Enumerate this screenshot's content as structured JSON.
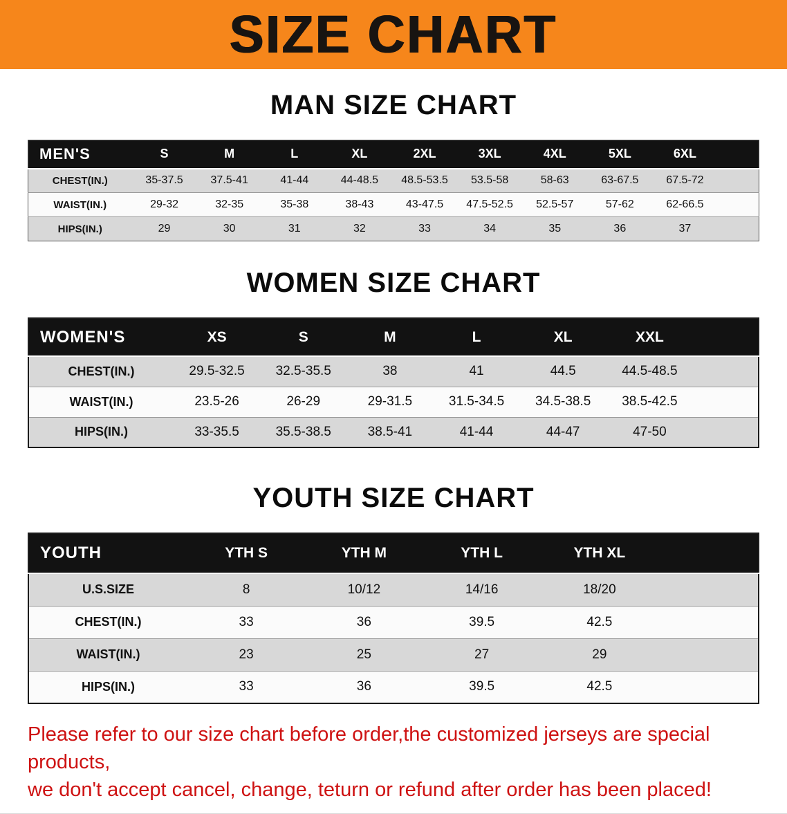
{
  "banner": {
    "title": "SIZE CHART",
    "bg_color": "#F6861B",
    "text_color": "#181411"
  },
  "sections": [
    {
      "heading": "MAN SIZE CHART",
      "table": {
        "header": [
          "MEN'S",
          "S",
          "M",
          "L",
          "XL",
          "2XL",
          "3XL",
          "4XL",
          "5XL",
          "6XL"
        ],
        "rows": [
          [
            "CHEST(IN.)",
            "35-37.5",
            "37.5-41",
            "41-44",
            "44-48.5",
            "48.5-53.5",
            "53.5-58",
            "58-63",
            "63-67.5",
            "67.5-72"
          ],
          [
            "WAIST(IN.)",
            "29-32",
            "32-35",
            "35-38",
            "38-43",
            "43-47.5",
            "47.5-52.5",
            "52.5-57",
            "57-62",
            "62-66.5"
          ],
          [
            "HIPS(IN.)",
            "29",
            "30",
            "31",
            "32",
            "33",
            "34",
            "35",
            "36",
            "37"
          ]
        ]
      }
    },
    {
      "heading": "WOMEN SIZE CHART",
      "table": {
        "header": [
          "WOMEN'S",
          "XS",
          "S",
          "M",
          "L",
          "XL",
          "XXL"
        ],
        "rows": [
          [
            "CHEST(IN.)",
            "29.5-32.5",
            "32.5-35.5",
            "38",
            "41",
            "44.5",
            "44.5-48.5"
          ],
          [
            "WAIST(IN.)",
            "23.5-26",
            "26-29",
            "29-31.5",
            "31.5-34.5",
            "34.5-38.5",
            "38.5-42.5"
          ],
          [
            "HIPS(IN.)",
            "33-35.5",
            "35.5-38.5",
            "38.5-41",
            "41-44",
            "44-47",
            "47-50"
          ]
        ]
      }
    },
    {
      "heading": "YOUTH SIZE CHART",
      "table": {
        "header": [
          "YOUTH",
          "YTH S",
          "YTH M",
          "YTH L",
          "YTH XL"
        ],
        "rows": [
          [
            "U.S.SIZE",
            "8",
            "10/12",
            "14/16",
            "18/20"
          ],
          [
            "CHEST(IN.)",
            "33",
            "36",
            "39.5",
            "42.5"
          ],
          [
            "WAIST(IN.)",
            "23",
            "25",
            "27",
            "29"
          ],
          [
            "HIPS(IN.)",
            "33",
            "36",
            "39.5",
            "42.5"
          ]
        ]
      }
    }
  ],
  "footer": {
    "line1": "Please refer to our size chart before order,the customized jerseys are special products,",
    "line2": "we don't accept cancel, change, teturn or refund after order has been placed!",
    "text_color": "#CE1212"
  }
}
